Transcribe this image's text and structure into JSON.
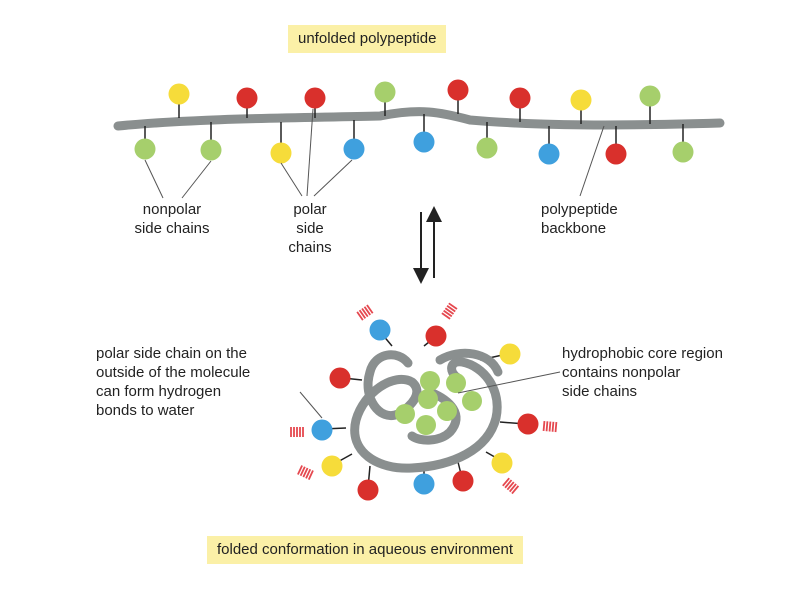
{
  "titles": {
    "top": "unfolded polypeptide",
    "bottom": "folded conformation in aqueous environment"
  },
  "labels": {
    "nonpolar": [
      "nonpolar",
      "side chains"
    ],
    "polar": [
      "polar",
      "side",
      "chains"
    ],
    "backbone": [
      "polypeptide",
      "backbone"
    ],
    "polar_outside": [
      "polar side chain on the",
      "outside of the molecule",
      "can form hydrogen",
      "bonds to water"
    ],
    "core": [
      "hydrophobic core region",
      "contains nonpolar",
      "side chains"
    ]
  },
  "colors": {
    "backbone": "#8a8f8f",
    "nonpolar": "#a6cf6c",
    "polar_yellow": "#f6dc3a",
    "polar_red": "#d9302c",
    "polar_blue": "#3fa0de",
    "water": "#e5484f",
    "title_bg": "#fbf0a7"
  },
  "legend_semantics": {
    "green": "nonpolar side chain",
    "red_yellow_blue": "polar side chain",
    "red_hatch": "hydrogen bonds to water"
  }
}
